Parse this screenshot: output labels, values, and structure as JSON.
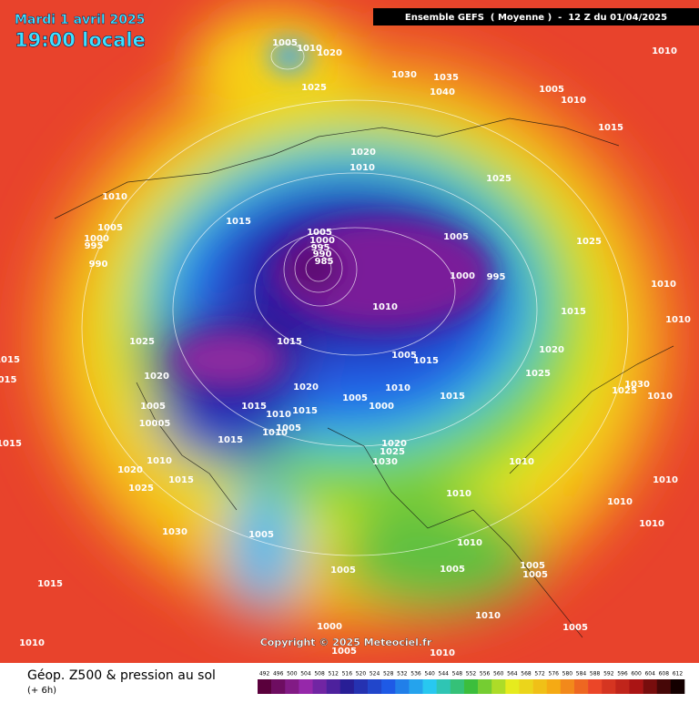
{
  "header": {
    "date": "Mardi 1 avril 2025",
    "time": "19:00 locale",
    "banner": "Ensemble GEFS  ( Moyenne )  -  12 Z du 01/04/2025"
  },
  "isobars": [
    "1005",
    "1010",
    "1020",
    "1025",
    "1030",
    "1035",
    "1040",
    "1005",
    "1010",
    "1010",
    "1015",
    "1020",
    "1010",
    "1025",
    "1010",
    "1015",
    "1005",
    "1000",
    "995",
    "990",
    "1005",
    "1000",
    "995",
    "990",
    "985",
    "1005",
    "1025",
    "1000",
    "995",
    "1010",
    "1010",
    "1015",
    "1010",
    "1025",
    "1015",
    "1020",
    "1005",
    "1015",
    "1025",
    "1020",
    "1010",
    "1030",
    "1020",
    "1025",
    "1010",
    "1005",
    "1015",
    "1005",
    "1015",
    "1000",
    "1015",
    "1010",
    "10005",
    "1010",
    "1005",
    "1015",
    "1015",
    "1020",
    "1025",
    "1030",
    "1010",
    "1020",
    "1010",
    "1015",
    "1025",
    "1010",
    "1010",
    "1010",
    "1010",
    "1030",
    "1005",
    "1010",
    "1005",
    "1005",
    "1005",
    "1005",
    "1015",
    "1010",
    "1000",
    "1005",
    "1005",
    "1010",
    "1010",
    "1015",
    "015"
  ],
  "footer": {
    "title": "Géop. Z500 & pression au sol",
    "lead": "(+ 6h)",
    "copyright": "Copyright © 2025 Meteociel.fr"
  },
  "colorbar": {
    "labels": [
      492,
      496,
      500,
      504,
      508,
      512,
      516,
      520,
      524,
      528,
      532,
      536,
      540,
      544,
      548,
      552,
      556,
      560,
      564,
      568,
      572,
      576,
      580,
      584,
      588,
      592,
      596,
      600,
      604,
      608,
      612
    ]
  }
}
